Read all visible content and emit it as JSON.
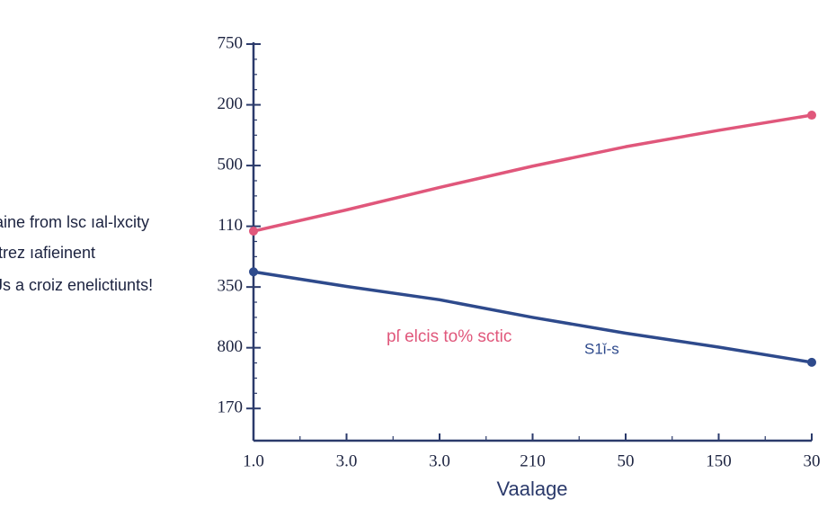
{
  "chart_data": {
    "type": "line",
    "side_text": [
      "aine from lsc ıal-lxcity",
      "ltrez ıafieinent",
      "Js a croiz enelictiunts!"
    ],
    "xlabel": "Vaalage",
    "categories": [
      "1.0",
      "3.0",
      "3.0",
      "210",
      "50",
      "150",
      "30"
    ],
    "series": [
      {
        "name": "pſ elcis to% sctic",
        "color": "#e0577b",
        "values": [
          2.92,
          3.27,
          3.64,
          3.99,
          4.31,
          4.58,
          4.83
        ]
      },
      {
        "name": "S1ǐ-s",
        "color": "#2e4a8c",
        "values": [
          2.25,
          2.01,
          1.79,
          1.5,
          1.24,
          1.01,
          0.76
        ]
      }
    ],
    "ylim": [
      -0.53,
      6.03
    ],
    "yticks": [
      {
        "value": 0,
        "label": "170"
      },
      {
        "value": 1,
        "label": "800"
      },
      {
        "value": 2,
        "label": "350"
      },
      {
        "value": 3,
        "label": "110"
      },
      {
        "value": 4,
        "label": "500"
      },
      {
        "value": 5,
        "label": "200"
      },
      {
        "value": 6,
        "label": "750"
      }
    ],
    "axis_color": "#2b3a6b"
  }
}
